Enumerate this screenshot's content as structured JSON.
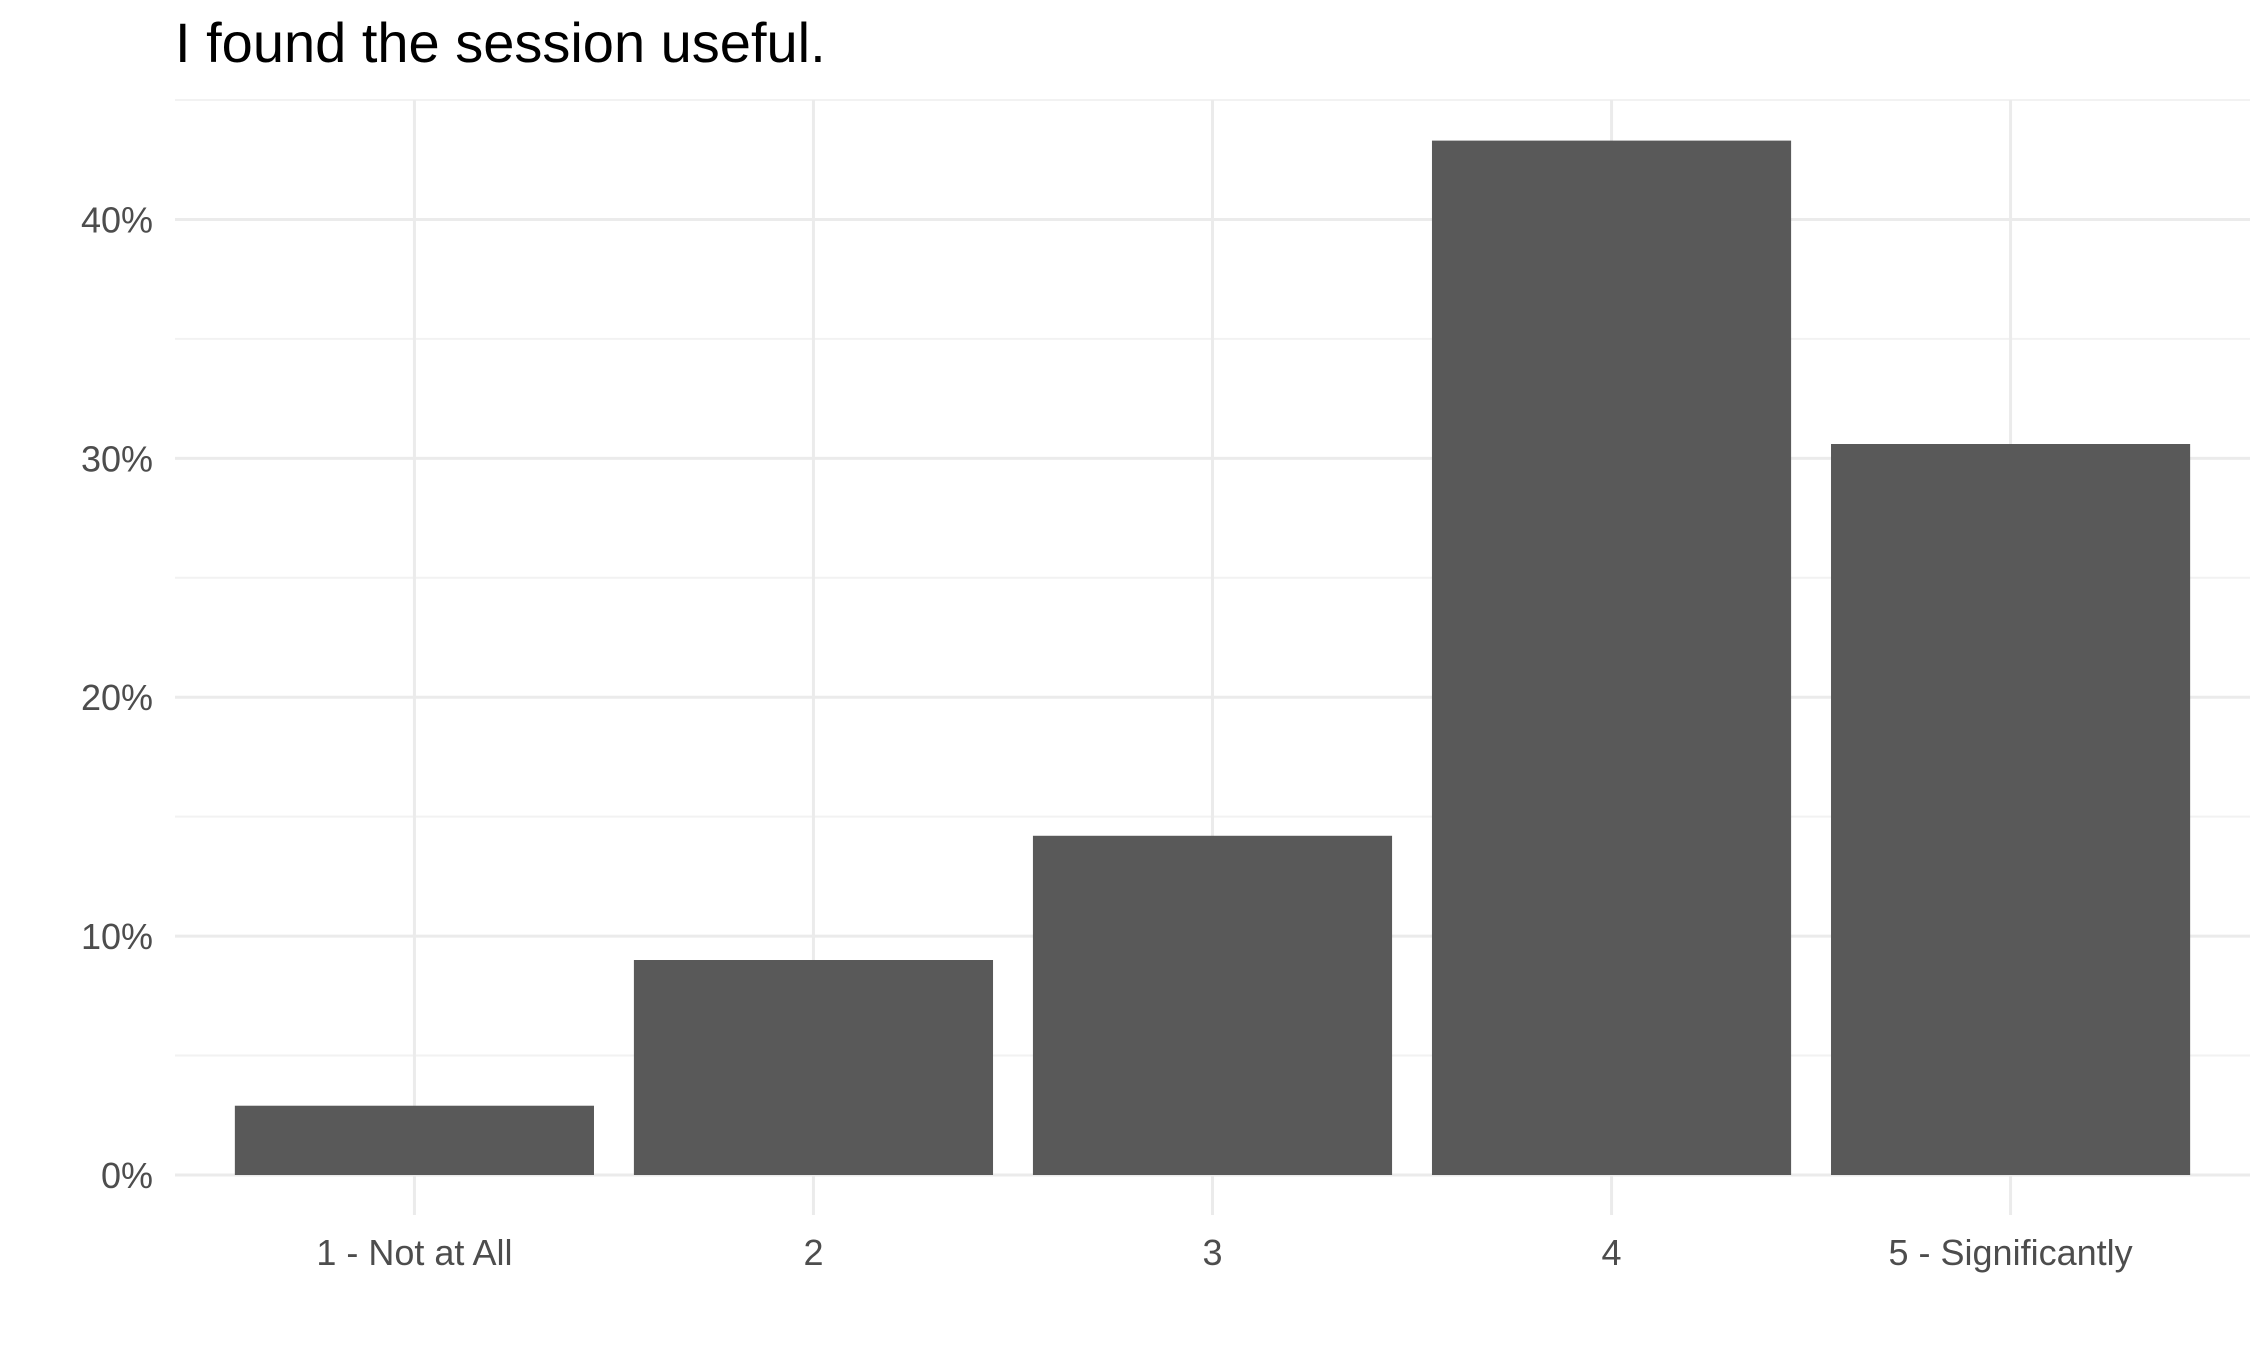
{
  "chart_data": {
    "type": "bar",
    "title": "I found the session useful.",
    "xlabel": "",
    "ylabel": "",
    "categories": [
      "1 - Not at All",
      "2",
      "3",
      "4",
      "5 - Significantly"
    ],
    "values": [
      2.9,
      9.0,
      14.2,
      43.3,
      30.6
    ],
    "value_unit": "%",
    "ylim": [
      0,
      45
    ],
    "y_ticks": [
      0,
      10,
      20,
      30,
      40
    ],
    "y_tick_labels": [
      "0%",
      "10%",
      "20%",
      "30%",
      "40%"
    ],
    "grid": true,
    "legend": "none",
    "colors": {
      "bar": "#595959",
      "grid_major": "#ebebeb",
      "grid_minor": "#f2f2f2",
      "tick_text": "#4d4d4d",
      "title_text": "#000000",
      "background": "#ffffff"
    }
  }
}
